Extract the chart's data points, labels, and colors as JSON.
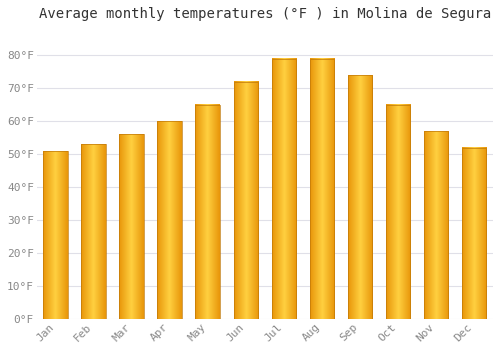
{
  "months": [
    "Jan",
    "Feb",
    "Mar",
    "Apr",
    "May",
    "Jun",
    "Jul",
    "Aug",
    "Sep",
    "Oct",
    "Nov",
    "Dec"
  ],
  "values": [
    51,
    53,
    56,
    60,
    65,
    72,
    79,
    79,
    74,
    65,
    57,
    52
  ],
  "bar_color_left": "#E8960A",
  "bar_color_center": "#FFD040",
  "bar_color_right": "#E8960A",
  "title": "Average monthly temperatures (°F ) in Molina de Segura",
  "ylim": [
    0,
    88
  ],
  "yticks": [
    0,
    10,
    20,
    30,
    40,
    50,
    60,
    70,
    80
  ],
  "ytick_labels": [
    "0°F",
    "10°F",
    "20°F",
    "30°F",
    "40°F",
    "50°F",
    "60°F",
    "70°F",
    "80°F"
  ],
  "grid_color": "#e0e0e8",
  "bg_color": "#ffffff",
  "title_fontsize": 10,
  "tick_fontsize": 8,
  "tick_color": "#888888",
  "figsize": [
    5.0,
    3.5
  ],
  "dpi": 100,
  "bar_width": 0.65
}
